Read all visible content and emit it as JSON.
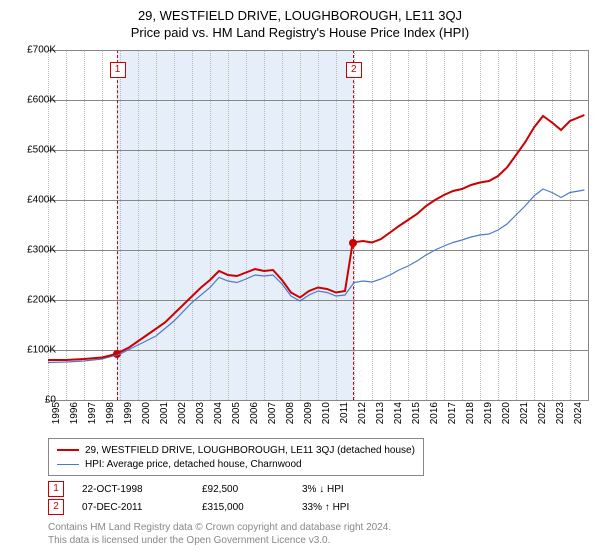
{
  "title_main": "29, WESTFIELD DRIVE, LOUGHBOROUGH, LE11 3QJ",
  "title_sub": "Price paid vs. HM Land Registry's House Price Index (HPI)",
  "chart": {
    "background_color": "#ffffff",
    "grid_color": "#888888",
    "vgrid_color": "#bbbbbb",
    "shade_color": "#e6eff9",
    "sale_line_color": "#cc0000",
    "x_years": [
      1995,
      1996,
      1997,
      1998,
      1999,
      2000,
      2001,
      2002,
      2003,
      2004,
      2005,
      2006,
      2007,
      2008,
      2009,
      2010,
      2011,
      2012,
      2013,
      2014,
      2015,
      2016,
      2017,
      2018,
      2019,
      2020,
      2021,
      2022,
      2023,
      2024
    ],
    "x_min": 1995.0,
    "x_max": 2025.0,
    "y_ticks": [
      0,
      100000,
      200000,
      300000,
      400000,
      500000,
      600000,
      700000
    ],
    "y_labels": [
      "£0",
      "£100K",
      "£200K",
      "£300K",
      "£400K",
      "£500K",
      "£600K",
      "£700K"
    ],
    "y_min": 0,
    "y_max": 700000,
    "shade_start": 1998.81,
    "shade_end": 2011.93,
    "series": {
      "price_paid": {
        "color": "#cc0000",
        "width": 2,
        "data": [
          [
            1995.0,
            80000
          ],
          [
            1996.0,
            80000
          ],
          [
            1997.0,
            82000
          ],
          [
            1998.0,
            85000
          ],
          [
            1998.81,
            92500
          ],
          [
            1999.5,
            105000
          ],
          [
            2000.5,
            130000
          ],
          [
            2001.5,
            155000
          ],
          [
            2002.5,
            190000
          ],
          [
            2003.5,
            225000
          ],
          [
            2004.0,
            240000
          ],
          [
            2004.5,
            258000
          ],
          [
            2005.0,
            250000
          ],
          [
            2005.5,
            248000
          ],
          [
            2006.0,
            255000
          ],
          [
            2006.5,
            262000
          ],
          [
            2007.0,
            258000
          ],
          [
            2007.5,
            260000
          ],
          [
            2008.0,
            240000
          ],
          [
            2008.5,
            215000
          ],
          [
            2009.0,
            205000
          ],
          [
            2009.5,
            218000
          ],
          [
            2010.0,
            225000
          ],
          [
            2010.5,
            222000
          ],
          [
            2011.0,
            215000
          ],
          [
            2011.5,
            218000
          ],
          [
            2011.93,
            315000
          ],
          [
            2012.5,
            318000
          ],
          [
            2013.0,
            315000
          ],
          [
            2013.5,
            322000
          ],
          [
            2014.0,
            335000
          ],
          [
            2014.5,
            348000
          ],
          [
            2015.0,
            360000
          ],
          [
            2015.5,
            372000
          ],
          [
            2016.0,
            388000
          ],
          [
            2016.5,
            400000
          ],
          [
            2017.0,
            410000
          ],
          [
            2017.5,
            418000
          ],
          [
            2018.0,
            422000
          ],
          [
            2018.5,
            430000
          ],
          [
            2019.0,
            435000
          ],
          [
            2019.5,
            438000
          ],
          [
            2020.0,
            448000
          ],
          [
            2020.5,
            465000
          ],
          [
            2021.0,
            490000
          ],
          [
            2021.5,
            515000
          ],
          [
            2022.0,
            545000
          ],
          [
            2022.5,
            568000
          ],
          [
            2023.0,
            555000
          ],
          [
            2023.5,
            540000
          ],
          [
            2024.0,
            558000
          ],
          [
            2024.8,
            570000
          ]
        ]
      },
      "hpi": {
        "color": "#4a7bc8",
        "width": 1.2,
        "data": [
          [
            1995.0,
            75000
          ],
          [
            1996.0,
            76000
          ],
          [
            1997.0,
            78000
          ],
          [
            1998.0,
            82000
          ],
          [
            1999.0,
            92000
          ],
          [
            2000.0,
            110000
          ],
          [
            2001.0,
            128000
          ],
          [
            2002.0,
            158000
          ],
          [
            2003.0,
            195000
          ],
          [
            2004.0,
            225000
          ],
          [
            2004.5,
            245000
          ],
          [
            2005.0,
            238000
          ],
          [
            2005.5,
            235000
          ],
          [
            2006.0,
            242000
          ],
          [
            2006.5,
            250000
          ],
          [
            2007.0,
            248000
          ],
          [
            2007.5,
            250000
          ],
          [
            2008.0,
            232000
          ],
          [
            2008.5,
            208000
          ],
          [
            2009.0,
            198000
          ],
          [
            2009.5,
            210000
          ],
          [
            2010.0,
            218000
          ],
          [
            2010.5,
            215000
          ],
          [
            2011.0,
            208000
          ],
          [
            2011.5,
            210000
          ],
          [
            2012.0,
            235000
          ],
          [
            2012.5,
            238000
          ],
          [
            2013.0,
            236000
          ],
          [
            2013.5,
            242000
          ],
          [
            2014.0,
            250000
          ],
          [
            2014.5,
            260000
          ],
          [
            2015.0,
            268000
          ],
          [
            2015.5,
            278000
          ],
          [
            2016.0,
            290000
          ],
          [
            2016.5,
            300000
          ],
          [
            2017.0,
            308000
          ],
          [
            2017.5,
            315000
          ],
          [
            2018.0,
            320000
          ],
          [
            2018.5,
            326000
          ],
          [
            2019.0,
            330000
          ],
          [
            2019.5,
            332000
          ],
          [
            2020.0,
            340000
          ],
          [
            2020.5,
            352000
          ],
          [
            2021.0,
            370000
          ],
          [
            2021.5,
            388000
          ],
          [
            2022.0,
            408000
          ],
          [
            2022.5,
            422000
          ],
          [
            2023.0,
            415000
          ],
          [
            2023.5,
            405000
          ],
          [
            2024.0,
            415000
          ],
          [
            2024.8,
            420000
          ]
        ]
      }
    },
    "sale_points": [
      {
        "n": "1",
        "x": 1998.81,
        "y": 92500
      },
      {
        "n": "2",
        "x": 2011.93,
        "y": 315000
      }
    ]
  },
  "legend": {
    "items": [
      {
        "color": "#cc0000",
        "label": "29, WESTFIELD DRIVE, LOUGHBOROUGH, LE11 3QJ (detached house)",
        "width": 2
      },
      {
        "color": "#4a7bc8",
        "label": "HPI: Average price, detached house, Charnwood",
        "width": 1.2
      }
    ]
  },
  "sales": [
    {
      "n": "1",
      "date": "22-OCT-1998",
      "price": "£92,500",
      "pct": "3% ↓ HPI"
    },
    {
      "n": "2",
      "date": "07-DEC-2011",
      "price": "£315,000",
      "pct": "33% ↑ HPI"
    }
  ],
  "footnote_l1": "Contains HM Land Registry data © Crown copyright and database right 2024.",
  "footnote_l2": "This data is licensed under the Open Government Licence v3.0."
}
